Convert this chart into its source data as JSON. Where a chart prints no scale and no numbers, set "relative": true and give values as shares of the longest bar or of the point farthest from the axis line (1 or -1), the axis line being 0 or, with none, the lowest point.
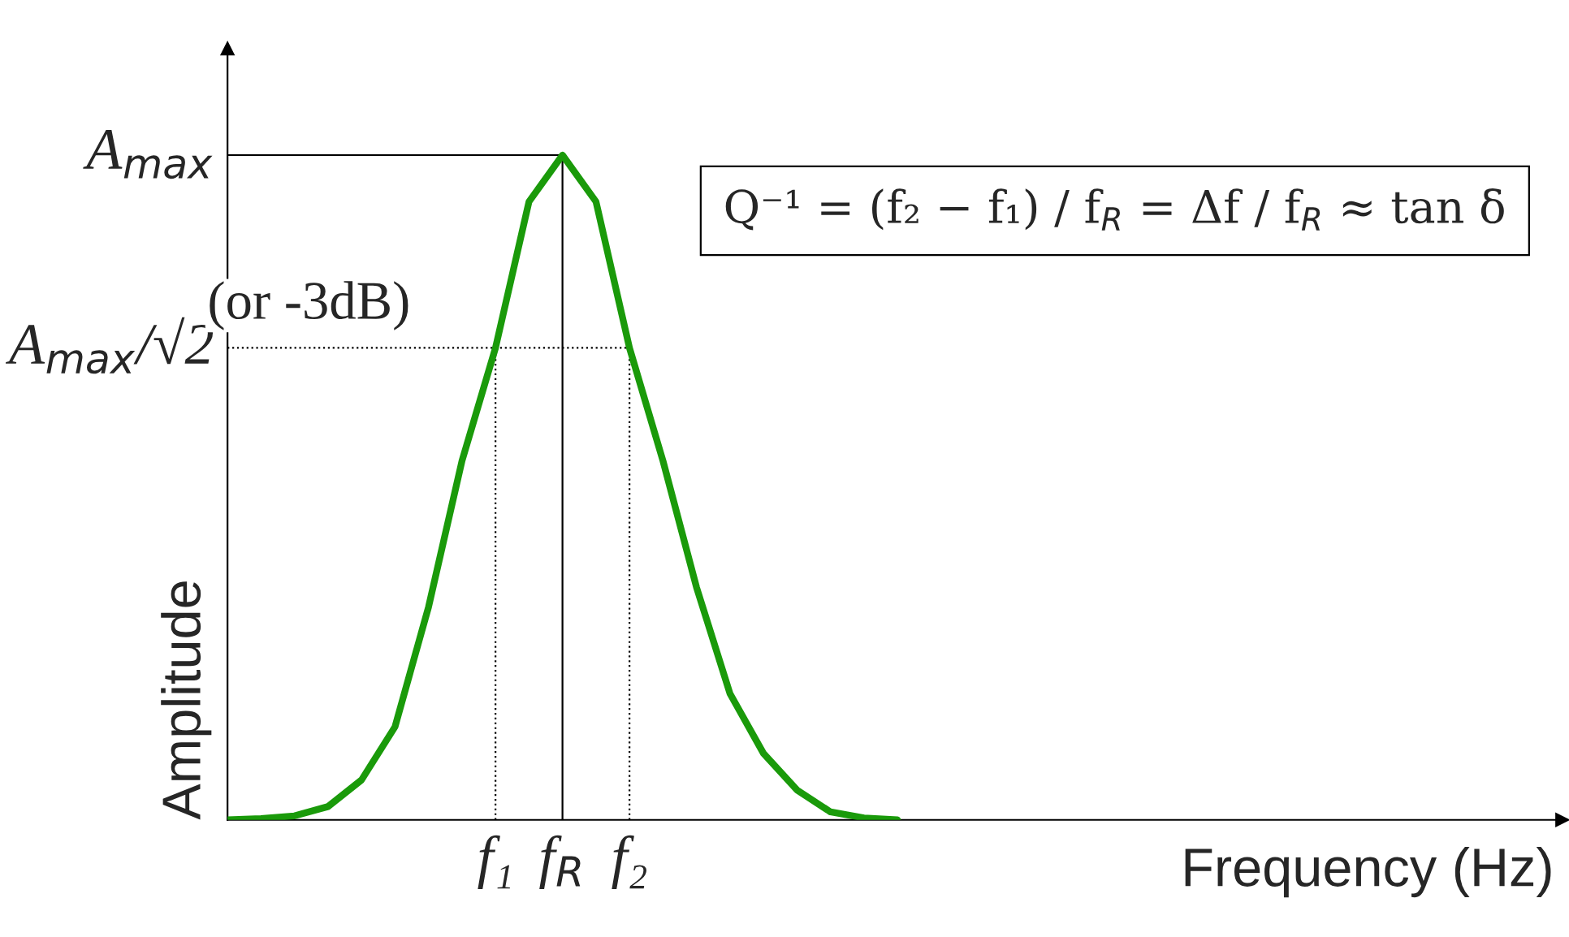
{
  "chart_data": {
    "type": "line",
    "relative": true,
    "xlabel": "Frequency (Hz)",
    "ylabel": "Amplitude",
    "categories": [
      null,
      null,
      null,
      null,
      null,
      null,
      null,
      null,
      null,
      null,
      null,
      null,
      null,
      null,
      null,
      null,
      null,
      null,
      null,
      null,
      null,
      null,
      null,
      null,
      null,
      null,
      null,
      null,
      null,
      null,
      null,
      null,
      null,
      null,
      null,
      null,
      null,
      null,
      null,
      null,
      null
    ],
    "series": [
      {
        "color": "#1a9a0a",
        "values": [
          0,
          0.002,
          0.006,
          0.02,
          0.06,
          0.14,
          0.32,
          0.54,
          0.71,
          0.93,
          1,
          0.93,
          0.71,
          0.54,
          0.35,
          0.19,
          0.1,
          0.045,
          0.012,
          0.003,
          0,
          null,
          null,
          null,
          null,
          null,
          null,
          null,
          null,
          null,
          null,
          null,
          null,
          null,
          null,
          null,
          null,
          null,
          null,
          null,
          null
        ]
      }
    ],
    "ref_lines": [
      {
        "axis": "y",
        "value": 1,
        "label": "A$_{max}$",
        "color": "#000000",
        "line_style": "solid"
      },
      {
        "axis": "y",
        "value": 0.71,
        "label": "A$_{max}$/√2",
        "color": "#000000",
        "line_style": "dotted"
      }
    ],
    "annotations": [
      "f₁",
      "f$_{R}$",
      "f₂",
      "(or -3dB)",
      "Q⁻¹ = (f₂ − f₁) / f$_{R}$ = Δf / f$_{R}$ ≈ tan δ"
    ],
    "legend": false,
    "marker": "none",
    "line_style": "solid"
  }
}
